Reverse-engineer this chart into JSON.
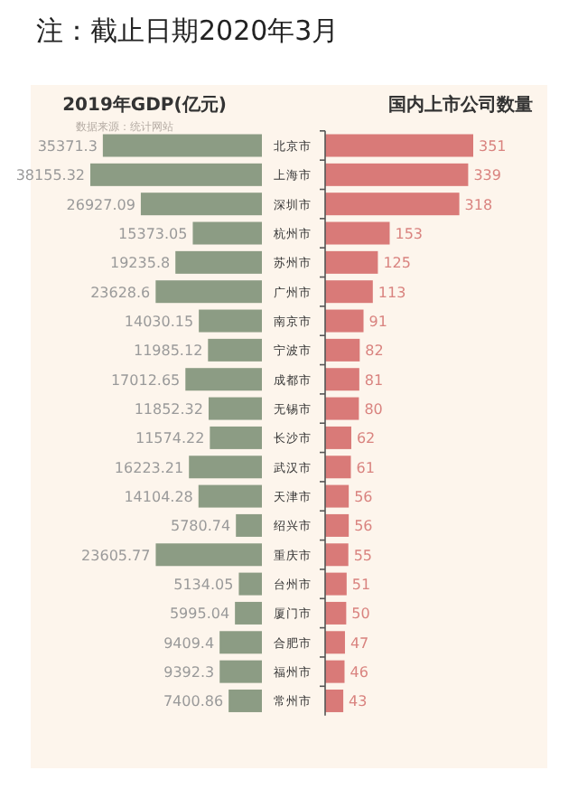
{
  "chart_data": [
    {
      "type": "bar",
      "orientation": "horizontal",
      "title": "2019年GDP(亿元)",
      "annotations": [
        "注：截止日期2020年3月",
        "数据来源：统计网站"
      ],
      "data_labels": true,
      "color": "#8c9c84",
      "categories": [
        "北京市",
        "上海市",
        "深圳市",
        "杭州市",
        "苏州市",
        "广州市",
        "南京市",
        "宁波市",
        "成都市",
        "无锡市",
        "长沙市",
        "武汉市",
        "天津市",
        "绍兴市",
        "重庆市",
        "台州市",
        "厦门市",
        "合肥市",
        "福州市",
        "常州市"
      ],
      "values": [
        35371.3,
        38155.32,
        26927.09,
        15373.05,
        19235.8,
        23628.6,
        14030.15,
        11985.12,
        17012.65,
        11852.32,
        11574.22,
        16223.21,
        14104.28,
        5780.74,
        23605.77,
        5134.05,
        5995.04,
        9409.4,
        9392.3,
        7400.86
      ]
    },
    {
      "type": "bar",
      "orientation": "horizontal",
      "title": "国内上市公司数量",
      "data_labels": true,
      "color": "#d97a78",
      "categories": [
        null,
        null,
        null,
        null,
        null,
        null,
        null,
        null,
        null,
        null,
        null,
        null,
        null,
        null,
        null,
        null,
        null,
        null,
        null,
        null
      ],
      "values": [
        351,
        339,
        318,
        153,
        125,
        113,
        91,
        82,
        81,
        80,
        62,
        61,
        56,
        56,
        55,
        51,
        50,
        47,
        46,
        43
      ]
    }
  ]
}
